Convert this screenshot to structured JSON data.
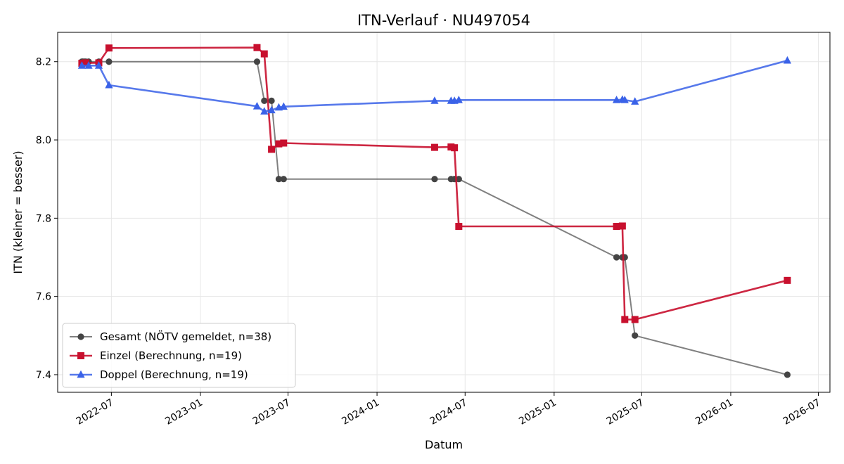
{
  "chart_data": {
    "type": "line",
    "title": "ITN-Verlauf · NU497054",
    "xlabel": "Datum",
    "ylabel": "ITN  (kleiner = besser)",
    "x_ticks": [
      "2022-07",
      "2023-01",
      "2023-07",
      "2024-01",
      "2024-07",
      "2025-01",
      "2025-07",
      "2026-01",
      "2026-07"
    ],
    "y_ticks": [
      "7.4",
      "7.6",
      "7.8",
      "8.0",
      "8.2"
    ],
    "xlim": [
      "2022-03-12",
      "2026-07-25"
    ],
    "ylim": [
      7.355,
      8.275
    ],
    "grid": true,
    "legend_position": "lower-left",
    "series": [
      {
        "name": "Gesamt (NÖTV gemeldet, n=38)",
        "color": "#555555",
        "marker": "circle",
        "points": [
          [
            "2022-05-01",
            8.2
          ],
          [
            "2022-05-03",
            8.2
          ],
          [
            "2022-05-06",
            8.2
          ],
          [
            "2022-05-09",
            8.2
          ],
          [
            "2022-05-15",
            8.2
          ],
          [
            "2022-06-05",
            8.2
          ],
          [
            "2022-06-26",
            8.2
          ],
          [
            "2023-04-28",
            8.2
          ],
          [
            "2023-05-13",
            8.1
          ],
          [
            "2023-05-28",
            8.1
          ],
          [
            "2023-06-12",
            7.9
          ],
          [
            "2023-06-22",
            7.9
          ],
          [
            "2024-04-29",
            7.9
          ],
          [
            "2024-06-02",
            7.9
          ],
          [
            "2024-06-09",
            7.9
          ],
          [
            "2024-06-18",
            7.9
          ],
          [
            "2025-05-10",
            7.7
          ],
          [
            "2025-05-22",
            7.7
          ],
          [
            "2025-05-27",
            7.7
          ],
          [
            "2025-06-17",
            7.5
          ],
          [
            "2026-04-28",
            7.4
          ]
        ]
      },
      {
        "name": "Einzel (Berechnung, n=19)",
        "color": "#c8102e",
        "marker": "square",
        "points": [
          [
            "2022-05-01",
            8.196
          ],
          [
            "2022-05-09",
            8.197
          ],
          [
            "2022-06-05",
            8.197
          ],
          [
            "2022-06-26",
            8.235
          ],
          [
            "2023-04-28",
            8.236
          ],
          [
            "2023-05-13",
            8.22
          ],
          [
            "2023-05-28",
            7.976
          ],
          [
            "2023-06-12",
            7.99
          ],
          [
            "2023-06-22",
            7.992
          ],
          [
            "2024-04-29",
            7.981
          ],
          [
            "2024-06-02",
            7.982
          ],
          [
            "2024-06-09",
            7.98
          ],
          [
            "2024-06-18",
            7.779
          ],
          [
            "2025-05-10",
            7.779
          ],
          [
            "2025-05-22",
            7.78
          ],
          [
            "2025-05-27",
            7.541
          ],
          [
            "2025-06-17",
            7.541
          ],
          [
            "2026-04-28",
            7.641
          ]
        ]
      },
      {
        "name": "Doppel (Berechnung, n=19)",
        "color": "#3a62e8",
        "marker": "triangle",
        "points": [
          [
            "2022-05-01",
            8.19
          ],
          [
            "2022-05-15",
            8.19
          ],
          [
            "2022-06-05",
            8.19
          ],
          [
            "2022-06-26",
            8.14
          ],
          [
            "2023-04-28",
            8.086
          ],
          [
            "2023-05-13",
            8.073
          ],
          [
            "2023-05-28",
            8.076
          ],
          [
            "2023-06-12",
            8.083
          ],
          [
            "2023-06-22",
            8.085
          ],
          [
            "2024-04-29",
            8.1
          ],
          [
            "2024-06-02",
            8.1
          ],
          [
            "2024-06-09",
            8.1
          ],
          [
            "2024-06-18",
            8.102
          ],
          [
            "2025-05-10",
            8.102
          ],
          [
            "2025-05-22",
            8.103
          ],
          [
            "2025-05-27",
            8.102
          ],
          [
            "2025-06-17",
            8.098
          ],
          [
            "2026-04-28",
            8.203
          ]
        ]
      }
    ]
  }
}
